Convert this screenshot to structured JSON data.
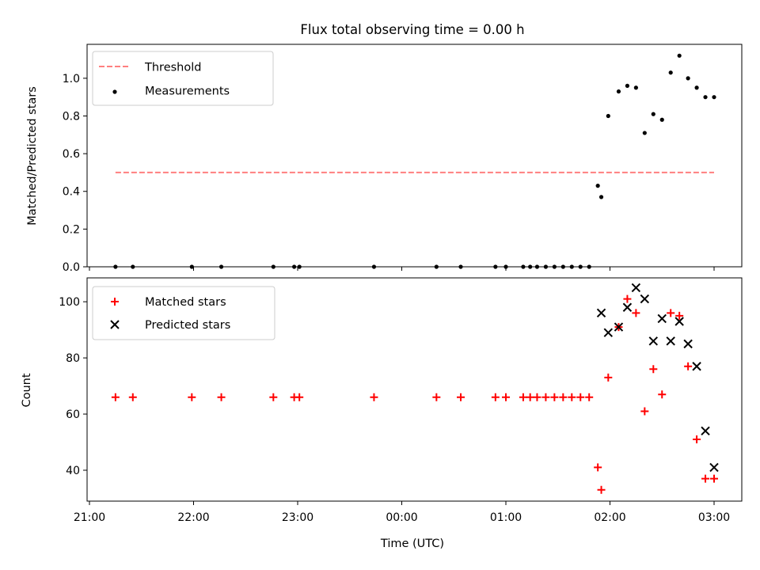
{
  "chart_data": [
    {
      "type": "scatter",
      "title": "Flux total observing time = 0.00 h",
      "ylabel": "Matched/Predicted stars",
      "xlabel": "",
      "ylim": [
        0,
        1.18
      ],
      "xlim": [
        "21:00",
        "03:00"
      ],
      "yticks": [
        "0.0",
        "0.2",
        "0.4",
        "0.6",
        "0.8",
        "1.0"
      ],
      "ytick_values": [
        0,
        0.2,
        0.4,
        0.6,
        0.8,
        1.0
      ],
      "legend": {
        "position": "top-left",
        "entries": [
          "Threshold",
          "Measurements"
        ]
      },
      "threshold": {
        "name": "Threshold",
        "value": 0.5,
        "x_start": "21:15",
        "x_end": "03:00",
        "color": "#ff7f7f"
      },
      "series": [
        {
          "name": "Measurements",
          "color": "#000000",
          "x": [
            "21:15",
            "21:25",
            "21:59",
            "22:16",
            "22:46",
            "22:58",
            "23:01",
            "23:44",
            "00:20",
            "00:34",
            "00:54",
            "01:00",
            "01:10",
            "01:14",
            "01:18",
            "01:23",
            "01:28",
            "01:33",
            "01:38",
            "01:43",
            "01:48",
            "01:53",
            "01:55",
            "01:59",
            "02:05",
            "02:10",
            "02:15",
            "02:20",
            "02:25",
            "02:30",
            "02:35",
            "02:40",
            "02:45",
            "02:50",
            "02:55",
            "03:00"
          ],
          "y": [
            0,
            0,
            0,
            0,
            0,
            0,
            0,
            0,
            0,
            0,
            0,
            0,
            0,
            0,
            0,
            0,
            0,
            0,
            0,
            0,
            0,
            0.43,
            0.37,
            0.8,
            0.93,
            0.96,
            0.95,
            0.71,
            0.81,
            0.78,
            1.03,
            1.12,
            1.0,
            0.95,
            0.9,
            0.9
          ]
        }
      ]
    },
    {
      "type": "scatter",
      "title": "",
      "ylabel": "Count",
      "xlabel": "Time (UTC)",
      "ylim": [
        29,
        108.5
      ],
      "xlim": [
        "21:00",
        "03:00"
      ],
      "yticks": [
        "40",
        "60",
        "80",
        "100"
      ],
      "ytick_values": [
        40,
        60,
        80,
        100
      ],
      "xticks": [
        "21:00",
        "22:00",
        "23:00",
        "00:00",
        "01:00",
        "02:00",
        "03:00"
      ],
      "legend": {
        "position": "top-left",
        "entries": [
          "Matched stars",
          "Predicted stars"
        ]
      },
      "series": [
        {
          "name": "Matched stars",
          "marker": "plus",
          "color": "#ff0000",
          "x": [
            "21:15",
            "21:25",
            "21:59",
            "22:16",
            "22:46",
            "22:58",
            "23:01",
            "23:44",
            "00:20",
            "00:34",
            "00:54",
            "01:00",
            "01:10",
            "01:14",
            "01:18",
            "01:23",
            "01:28",
            "01:33",
            "01:38",
            "01:43",
            "01:48",
            "01:53",
            "01:55",
            "01:59",
            "02:05",
            "02:10",
            "02:15",
            "02:20",
            "02:25",
            "02:30",
            "02:35",
            "02:40",
            "02:45",
            "02:50",
            "02:55",
            "03:00"
          ],
          "y": [
            66,
            66,
            66,
            66,
            66,
            66,
            66,
            66,
            66,
            66,
            66,
            66,
            66,
            66,
            66,
            66,
            66,
            66,
            66,
            66,
            66,
            41,
            33,
            73,
            91,
            101,
            96,
            61,
            76,
            67,
            96,
            95,
            77,
            51,
            37,
            37
          ]
        },
        {
          "name": "Predicted stars",
          "marker": "x",
          "color": "#000000",
          "x": [
            "01:55",
            "01:59",
            "02:05",
            "02:10",
            "02:15",
            "02:20",
            "02:25",
            "02:30",
            "02:35",
            "02:40",
            "02:45",
            "02:50",
            "02:55",
            "03:00"
          ],
          "y": [
            96,
            89,
            91,
            98,
            105,
            101,
            86,
            94,
            86,
            93,
            85,
            77,
            54,
            41
          ]
        }
      ]
    }
  ]
}
